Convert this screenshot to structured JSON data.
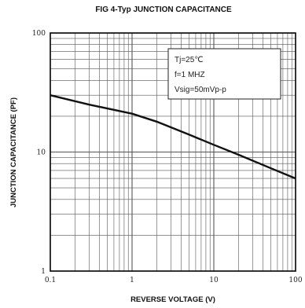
{
  "chart_data": {
    "type": "line",
    "title": "FIG 4-Typ JUNCTION CAPACITANCE",
    "xlabel": "REVERSE VOLTAGE (V)",
    "ylabel": "JUNCTION CAPACITANCE (PF)",
    "x_scale": "log",
    "y_scale": "log",
    "xlim": [
      0.1,
      100
    ],
    "ylim": [
      1,
      100
    ],
    "x_tick_labels": [
      "0.1",
      "1",
      "10",
      "100"
    ],
    "y_tick_labels": [
      "1",
      "10",
      "100"
    ],
    "grid": true,
    "annotation": [
      "Tj=25℃",
      "f=1 MHZ",
      "Vsig=50mVp-p"
    ],
    "series": [
      {
        "x": [
          0.1,
          0.3,
          1,
          2,
          5,
          10,
          20,
          50,
          100
        ],
        "y": [
          30,
          25,
          21,
          18,
          14,
          11.5,
          9.5,
          7.3,
          6
        ]
      }
    ],
    "colors": {
      "line": "#111111",
      "grid": "#555555",
      "frame": "#000000"
    }
  }
}
